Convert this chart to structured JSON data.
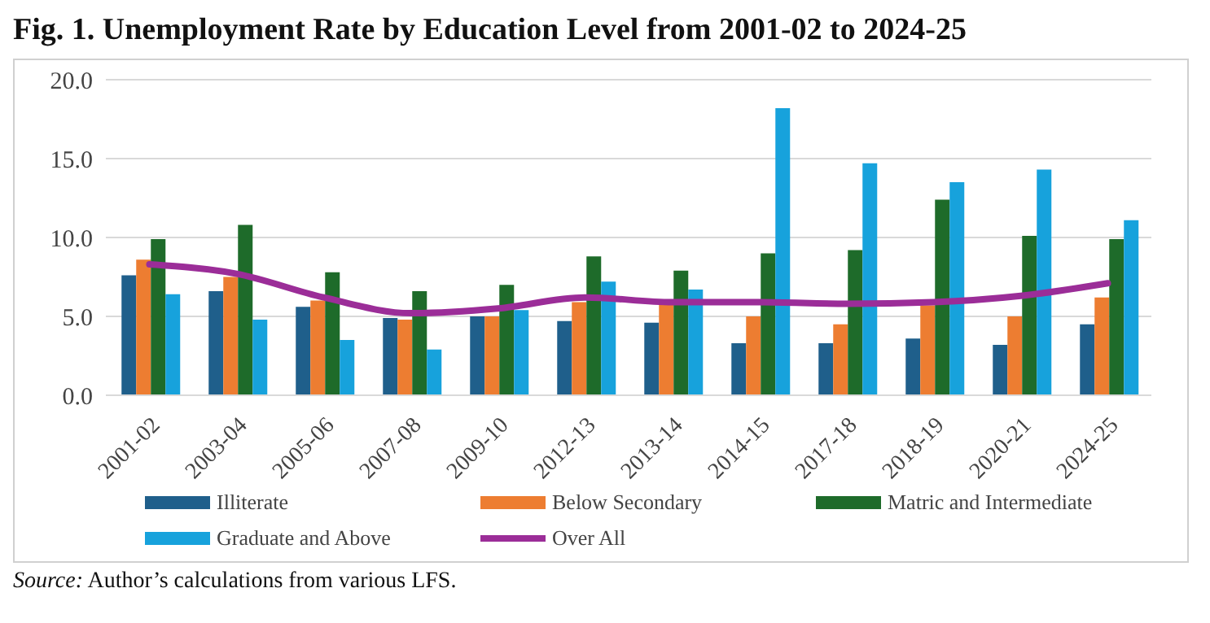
{
  "chart_data": {
    "type": "bar",
    "title": "Fig. 1. Unemployment Rate by Education Level from 2001-02 to 2024-25",
    "categories": [
      "2001-02",
      "2003-04",
      "2005-06",
      "2007-08",
      "2009-10",
      "2012-13",
      "2013-14",
      "2014-15",
      "2017-18",
      "2018-19",
      "2020-21",
      "2024-25"
    ],
    "series": [
      {
        "name": "Illiterate",
        "color": "#1f5f8b",
        "values": [
          7.6,
          6.6,
          5.6,
          4.9,
          5.0,
          4.7,
          4.6,
          3.3,
          3.3,
          3.6,
          3.2,
          4.5
        ]
      },
      {
        "name": "Below Secondary",
        "color": "#ed7d31",
        "values": [
          8.6,
          7.5,
          6.0,
          4.8,
          5.0,
          5.9,
          5.8,
          5.0,
          4.5,
          5.7,
          5.0,
          6.2
        ]
      },
      {
        "name": "Matric and Intermediate",
        "color": "#1e6b2a",
        "values": [
          9.9,
          10.8,
          7.8,
          6.6,
          7.0,
          8.8,
          7.9,
          9.0,
          9.2,
          12.4,
          10.1,
          9.9
        ]
      },
      {
        "name": "Graduate and Above",
        "color": "#17a2dc",
        "values": [
          6.4,
          4.8,
          3.5,
          2.9,
          5.4,
          7.2,
          6.7,
          18.2,
          14.7,
          13.5,
          14.3,
          11.1
        ]
      },
      {
        "name": "Over All",
        "type": "line",
        "color": "#9b2d98",
        "values": [
          8.3,
          7.7,
          6.2,
          5.2,
          5.5,
          6.2,
          5.9,
          5.9,
          5.8,
          5.9,
          6.3,
          7.1
        ]
      }
    ],
    "ylim": [
      0,
      20
    ],
    "yticks": [
      {
        "value": 0,
        "label": "0.0"
      },
      {
        "value": 5,
        "label": "5.0"
      },
      {
        "value": 10,
        "label": "10.0"
      },
      {
        "value": 15,
        "label": "15.0"
      },
      {
        "value": 20,
        "label": "20.0"
      }
    ],
    "grid": "y",
    "legend": "bottom",
    "marker": "none",
    "annotations": [
      "Source: Author’s calculations from various LFS."
    ]
  }
}
